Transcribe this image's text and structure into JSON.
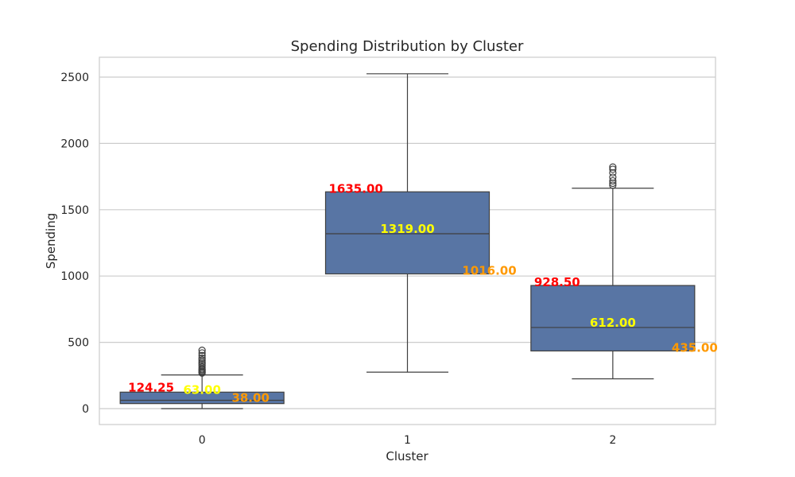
{
  "chart_data": {
    "type": "box",
    "title": "Spending Distribution by Cluster",
    "xlabel": "Cluster",
    "ylabel": "Spending",
    "ylim": [
      -120,
      2660
    ],
    "yticks": [
      0,
      500,
      1000,
      1500,
      2000,
      2500
    ],
    "grid": true,
    "box_color": "#5875a4",
    "colors": {
      "q3": "#ff0000",
      "median": "#ffff00",
      "q1": "#ff9900"
    },
    "categories": [
      "0",
      "1",
      "2"
    ],
    "boxes": [
      {
        "category": "0",
        "whisker_low": 0,
        "q1": 38.0,
        "median": 63.0,
        "q3": 124.25,
        "whisker_high": 254,
        "outliers": [
          268,
          275,
          283,
          292,
          300,
          312,
          325,
          338,
          350,
          365,
          380,
          400,
          420,
          440
        ],
        "q3_label": "124.25",
        "median_label": "63.00",
        "q1_label": "38.00"
      },
      {
        "category": "1",
        "whisker_low": 275,
        "q1": 1016.0,
        "median": 1319.0,
        "q3": 1635.0,
        "whisker_high": 2525,
        "outliers": [],
        "q3_label": "1635.00",
        "median_label": "1319.00",
        "q1_label": "1016.00"
      },
      {
        "category": "2",
        "whisker_low": 225,
        "q1": 435.0,
        "median": 612.0,
        "q3": 928.5,
        "whisker_high": 1662,
        "outliers": [
          1685,
          1700,
          1718,
          1745,
          1778,
          1805,
          1822
        ],
        "q3_label": "928.50",
        "median_label": "612.00",
        "q1_label": "435.00"
      }
    ]
  }
}
